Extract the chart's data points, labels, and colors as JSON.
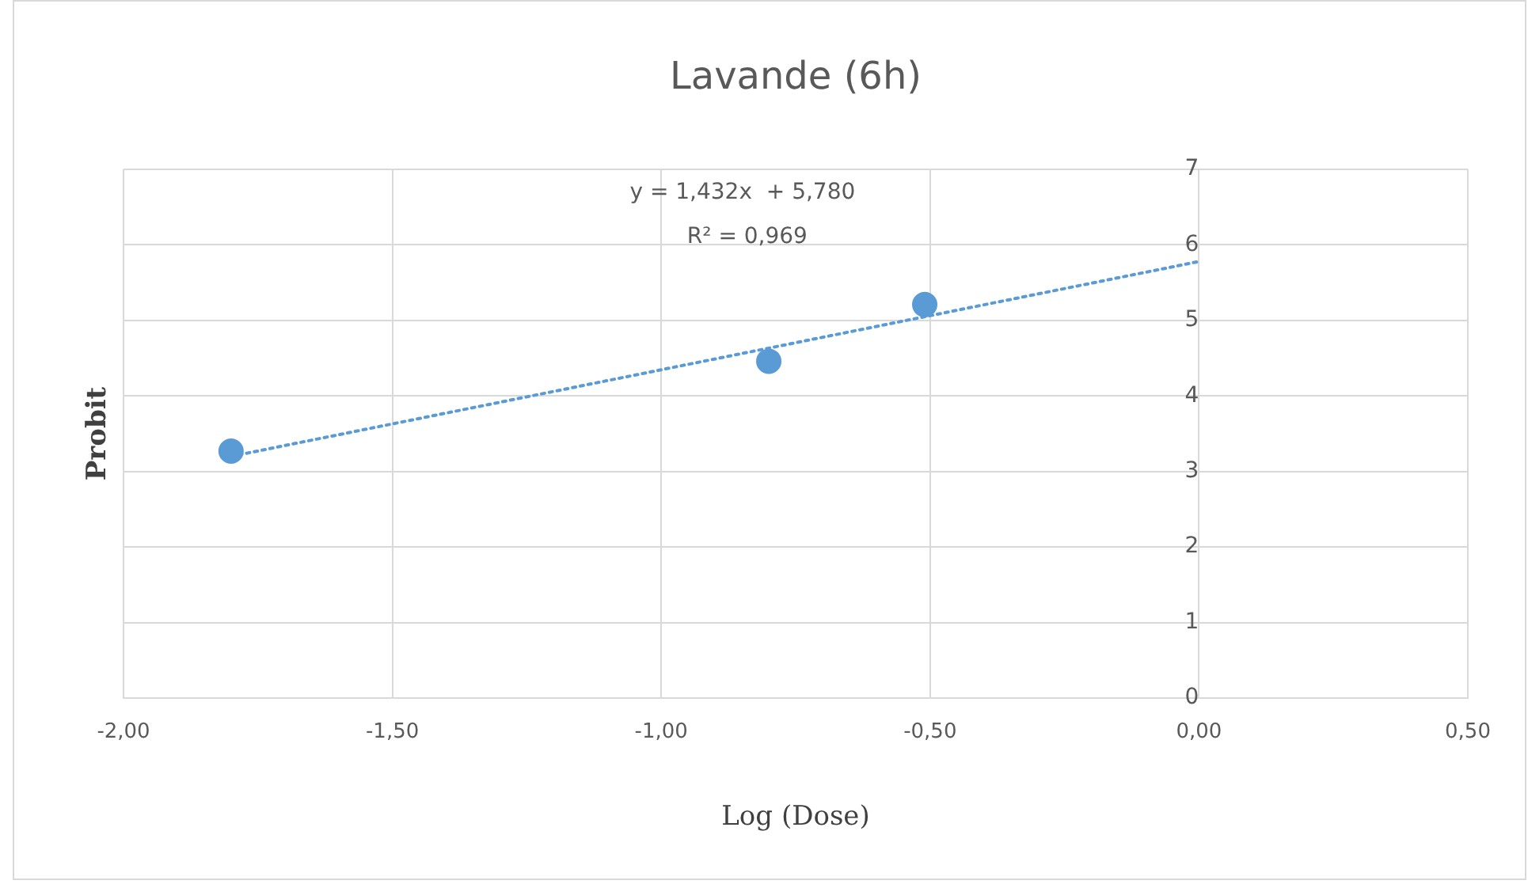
{
  "chart_data": {
    "type": "scatter",
    "title": "Lavande (6h)",
    "xlabel": "Log (Dose)",
    "ylabel": "Probit",
    "annotations": [
      "y = 1,432x  + 5,780",
      "R² = 0,969"
    ],
    "series": [
      {
        "color": "#5b9bd5",
        "x": [
          -1.8,
          -0.8,
          -0.51
        ],
        "values": [
          3.27,
          4.46,
          5.21
        ],
        "marker": "circle"
      },
      {
        "type": "line",
        "color": "#5b9bd5",
        "x": [
          -1.8,
          0
        ],
        "values": [
          3.2,
          5.78
        ],
        "marker": "none",
        "line_style": "dotted"
      }
    ],
    "xlim": [
      -2,
      0.5
    ],
    "xticks": [
      {
        "value": -2,
        "label": "-2,00"
      },
      {
        "value": -1.5,
        "label": "-1,50"
      },
      {
        "value": -1,
        "label": "-1,00"
      },
      {
        "value": -0.5,
        "label": "-0,50"
      },
      {
        "value": 0,
        "label": "0,00"
      },
      {
        "value": 0.5,
        "label": "0,50"
      }
    ],
    "ylim": [
      0,
      7
    ],
    "yticks": [
      0,
      1,
      2,
      3,
      4,
      5,
      6,
      7
    ],
    "grid": true,
    "legend": false
  }
}
